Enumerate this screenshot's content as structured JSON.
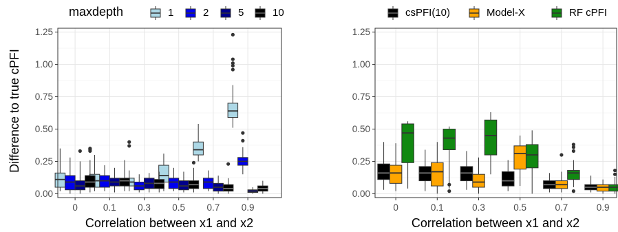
{
  "chart_data": [
    {
      "type": "boxplot",
      "ylabel": "Difference to true cPFI",
      "xlabel": "Correlation between x1 and x2",
      "categories": [
        "0",
        "0.1",
        "0.3",
        "0.5",
        "0.7",
        "0.9"
      ],
      "yticks": [
        "0.00",
        "0.25",
        "0.50",
        "0.75",
        "1.00",
        "1.25"
      ],
      "ylim": [
        -0.03,
        1.28
      ],
      "legend": {
        "title": "maxdepth",
        "position": "top"
      },
      "series": [
        {
          "name": "1",
          "color": "#add8e6",
          "boxes": [
            {
              "min": 0.02,
              "q1": 0.05,
              "median": 0.11,
              "q3": 0.16,
              "max": 0.35,
              "outliers": []
            },
            {
              "min": 0.02,
              "q1": 0.05,
              "median": 0.1,
              "q3": 0.15,
              "max": 0.3,
              "outliers": []
            },
            {
              "min": 0.02,
              "q1": 0.06,
              "median": 0.09,
              "q3": 0.12,
              "max": 0.18,
              "outliers": [
                0.37,
                0.4
              ]
            },
            {
              "min": 0.02,
              "q1": 0.09,
              "median": 0.14,
              "q3": 0.22,
              "max": 0.31,
              "outliers": []
            },
            {
              "min": 0.25,
              "q1": 0.3,
              "median": 0.34,
              "q3": 0.4,
              "max": 0.54,
              "outliers": []
            },
            {
              "min": 0.51,
              "q1": 0.59,
              "median": 0.64,
              "q3": 0.7,
              "max": 0.84,
              "outliers": [
                0.96,
                0.99,
                1.01,
                1.04,
                1.23
              ]
            }
          ]
        },
        {
          "name": "2",
          "color": "#0000ee",
          "boxes": [
            {
              "min": 0.0,
              "q1": 0.03,
              "median": 0.09,
              "q3": 0.14,
              "max": 0.28,
              "outliers": []
            },
            {
              "min": 0.02,
              "q1": 0.05,
              "median": 0.1,
              "q3": 0.14,
              "max": 0.22,
              "outliers": []
            },
            {
              "min": 0.01,
              "q1": 0.03,
              "median": 0.06,
              "q3": 0.09,
              "max": 0.15,
              "outliers": []
            },
            {
              "min": 0.02,
              "q1": 0.04,
              "median": 0.09,
              "q3": 0.12,
              "max": 0.2,
              "outliers": []
            },
            {
              "min": 0.02,
              "q1": 0.04,
              "median": 0.09,
              "q3": 0.12,
              "max": 0.18,
              "outliers": []
            },
            {
              "min": 0.15,
              "q1": 0.22,
              "median": 0.25,
              "q3": 0.28,
              "max": 0.36,
              "outliers": [
                0.41,
                0.47
              ]
            }
          ]
        },
        {
          "name": "5",
          "color": "#00008b",
          "boxes": [
            {
              "min": 0.0,
              "q1": 0.03,
              "median": 0.06,
              "q3": 0.1,
              "max": 0.25,
              "outliers": [
                0.33
              ]
            },
            {
              "min": 0.01,
              "q1": 0.06,
              "median": 0.09,
              "q3": 0.12,
              "max": 0.2,
              "outliers": []
            },
            {
              "min": 0.01,
              "q1": 0.04,
              "median": 0.08,
              "q3": 0.12,
              "max": 0.16,
              "outliers": []
            },
            {
              "min": 0.01,
              "q1": 0.03,
              "median": 0.06,
              "q3": 0.1,
              "max": 0.17,
              "outliers": []
            },
            {
              "min": 0.0,
              "q1": 0.02,
              "median": 0.05,
              "q3": 0.08,
              "max": 0.14,
              "outliers": []
            },
            {
              "min": 0.0,
              "q1": 0.01,
              "median": 0.02,
              "q3": 0.03,
              "max": 0.05,
              "outliers": []
            }
          ]
        },
        {
          "name": "10",
          "color": "#000000",
          "boxes": [
            {
              "min": 0.01,
              "q1": 0.05,
              "median": 0.09,
              "q3": 0.14,
              "max": 0.26,
              "outliers": [
                0.33,
                0.34,
                0.35
              ]
            },
            {
              "min": 0.02,
              "q1": 0.06,
              "median": 0.1,
              "q3": 0.12,
              "max": 0.26,
              "outliers": []
            },
            {
              "min": 0.01,
              "q1": 0.04,
              "median": 0.08,
              "q3": 0.11,
              "max": 0.17,
              "outliers": []
            },
            {
              "min": 0.01,
              "q1": 0.04,
              "median": 0.07,
              "q3": 0.1,
              "max": 0.2,
              "outliers": [
                0.24
              ]
            },
            {
              "min": 0.0,
              "q1": 0.02,
              "median": 0.04,
              "q3": 0.07,
              "max": 0.12,
              "outliers": [
                0.23
              ]
            },
            {
              "min": 0.0,
              "q1": 0.02,
              "median": 0.04,
              "q3": 0.06,
              "max": 0.1,
              "outliers": []
            }
          ]
        }
      ]
    },
    {
      "type": "boxplot",
      "ylabel": "",
      "xlabel": "Correlation between x1 and x2",
      "categories": [
        "0",
        "0.1",
        "0.3",
        "0.5",
        "0.7",
        "0.9"
      ],
      "yticks": [
        "0.00",
        "0.25",
        "0.50",
        "0.75",
        "1.00",
        "1.25"
      ],
      "ylim": [
        -0.03,
        1.28
      ],
      "legend": {
        "title": "",
        "position": "top"
      },
      "series": [
        {
          "name": "csPFI(10)",
          "color": "#000000",
          "boxes": [
            {
              "min": 0.03,
              "q1": 0.11,
              "median": 0.16,
              "q3": 0.23,
              "max": 0.4,
              "outliers": []
            },
            {
              "min": 0.02,
              "q1": 0.1,
              "median": 0.16,
              "q3": 0.21,
              "max": 0.34,
              "outliers": []
            },
            {
              "min": 0.03,
              "q1": 0.1,
              "median": 0.16,
              "q3": 0.21,
              "max": 0.33,
              "outliers": []
            },
            {
              "min": 0.02,
              "q1": 0.06,
              "median": 0.1,
              "q3": 0.17,
              "max": 0.26,
              "outliers": []
            },
            {
              "min": 0.01,
              "q1": 0.04,
              "median": 0.07,
              "q3": 0.1,
              "max": 0.16,
              "outliers": []
            },
            {
              "min": 0.01,
              "q1": 0.03,
              "median": 0.05,
              "q3": 0.07,
              "max": 0.14,
              "outliers": []
            }
          ]
        },
        {
          "name": "Model-X",
          "color": "#ffa500",
          "boxes": [
            {
              "min": 0.02,
              "q1": 0.08,
              "median": 0.16,
              "q3": 0.22,
              "max": 0.39,
              "outliers": []
            },
            {
              "min": 0.0,
              "q1": 0.06,
              "median": 0.17,
              "q3": 0.24,
              "max": 0.4,
              "outliers": []
            },
            {
              "min": 0.0,
              "q1": 0.05,
              "median": 0.09,
              "q3": 0.15,
              "max": 0.28,
              "outliers": []
            },
            {
              "min": 0.06,
              "q1": 0.19,
              "median": 0.31,
              "q3": 0.37,
              "max": 0.45,
              "outliers": []
            },
            {
              "min": 0.01,
              "q1": 0.04,
              "median": 0.07,
              "q3": 0.1,
              "max": 0.17,
              "outliers": [
                0.3
              ]
            },
            {
              "min": 0.0,
              "q1": 0.02,
              "median": 0.05,
              "q3": 0.07,
              "max": 0.11,
              "outliers": []
            }
          ]
        },
        {
          "name": "RF cPFI",
          "color": "#118811",
          "boxes": [
            {
              "min": 0.04,
              "q1": 0.24,
              "median": 0.47,
              "q3": 0.54,
              "max": 0.56,
              "outliers": []
            },
            {
              "min": 0.04,
              "q1": 0.34,
              "median": 0.43,
              "q3": 0.5,
              "max": 0.52,
              "outliers": [
                0.02,
                0.07
              ]
            },
            {
              "min": 0.15,
              "q1": 0.3,
              "median": 0.45,
              "q3": 0.57,
              "max": 0.63,
              "outliers": []
            },
            {
              "min": 0.0,
              "q1": 0.2,
              "median": 0.3,
              "q3": 0.38,
              "max": 0.49,
              "outliers": []
            },
            {
              "min": 0.05,
              "q1": 0.11,
              "median": 0.16,
              "q3": 0.18,
              "max": 0.26,
              "outliers": [
                0.02,
                0.33,
                0.36,
                0.38
              ]
            },
            {
              "min": 0.0,
              "q1": 0.02,
              "median": 0.05,
              "q3": 0.07,
              "max": 0.13,
              "outliers": [
                0.15,
                0.18
              ]
            }
          ]
        }
      ]
    }
  ]
}
